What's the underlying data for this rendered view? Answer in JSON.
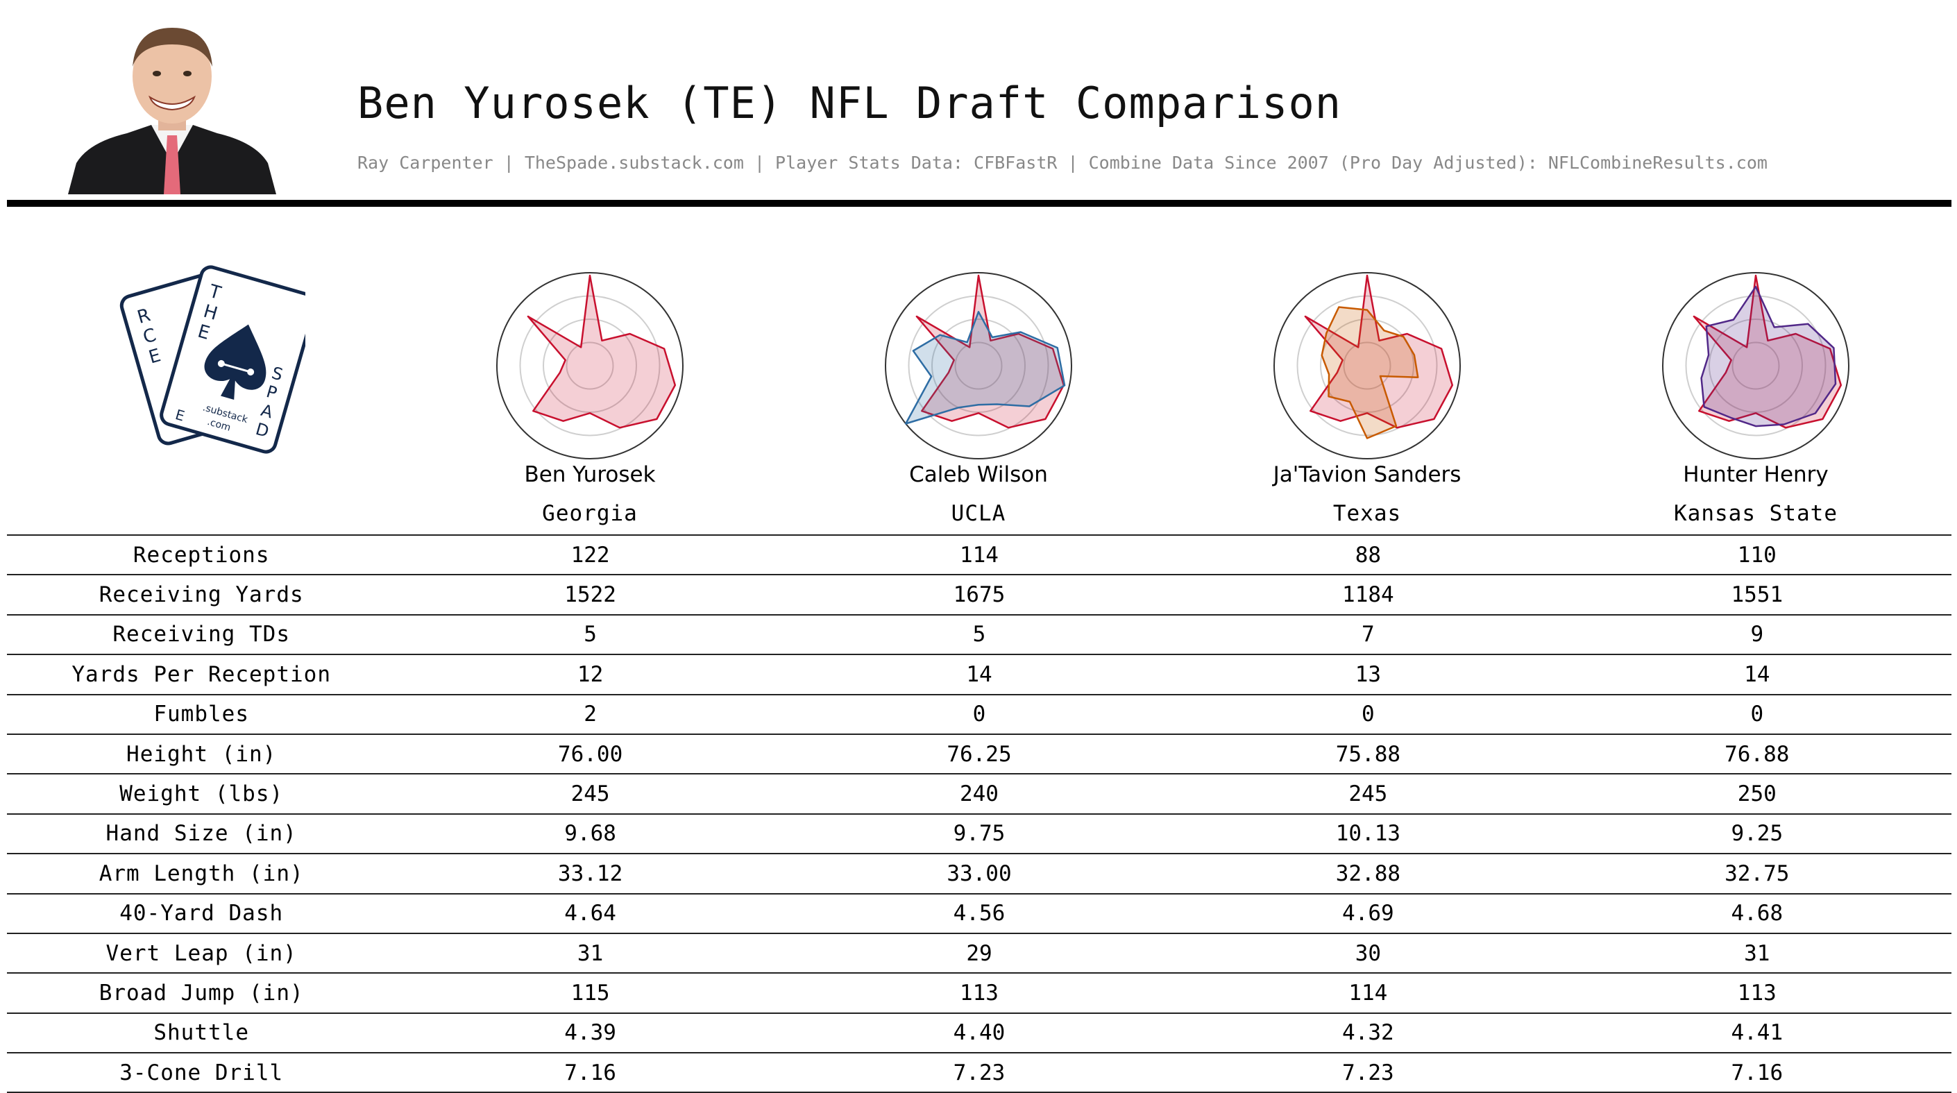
{
  "header": {
    "title": "Ben Yurosek (TE) NFL Draft Comparison",
    "subtitle": "Ray Carpenter | TheSpade.substack.com | Player Stats Data: CFBFastR | Combine Data Since 2007 (Pro Day Adjusted): NFLCombineResults.com"
  },
  "logo": {
    "back_card_letters": [
      "R",
      "C",
      "E"
    ],
    "front_card_letters": [
      "T",
      "H",
      "E",
      "S",
      "P",
      "A",
      "D",
      "E"
    ],
    "small_text": ".substack",
    "small_text2": ".com"
  },
  "colors": {
    "base": "#c8102e",
    "caleb": "#2e6da4",
    "jatavion": "#c85a00",
    "hunter": "#512888"
  },
  "players": [
    {
      "name": "Ben Yurosek",
      "school": "Georgia"
    },
    {
      "name": "Caleb Wilson",
      "school": "UCLA"
    },
    {
      "name": "Ja'Tavion Sanders",
      "school": "Texas"
    },
    {
      "name": "Hunter Henry",
      "school": "Kansas State"
    }
  ],
  "chart_data": {
    "type": "radar",
    "axes": [
      "Receptions",
      "Receiving Yards",
      "Receiving TDs",
      "Yards Per Reception",
      "Fumbles",
      "Height (in)",
      "Weight (lbs)",
      "Hand Size (in)",
      "Arm Length (in)",
      "40-Yard Dash",
      "Vert Leap (in)",
      "Broad Jump (in)",
      "Shuttle",
      "3-Cone Drill"
    ],
    "range": [
      0,
      1
    ],
    "base_series": {
      "name": "Ben Yurosek",
      "values": [
        0.97,
        0.3,
        0.55,
        0.82,
        0.94,
        0.92,
        0.74,
        0.51,
        0.66,
        0.78,
        0.33,
        0.27,
        0.85,
        0.22
      ]
    },
    "comparisons": [
      {
        "name": "Caleb Wilson",
        "values": [
          0.58,
          0.34,
          0.58,
          0.87,
          0.95,
          0.7,
          0.46,
          0.42,
          0.5,
          1.0,
          0.52,
          0.72,
          0.53,
          0.28
        ]
      },
      {
        "name": "Ja'Tavion Sanders",
        "values": [
          0.6,
          0.42,
          0.5,
          0.52,
          0.56,
          0.18,
          0.72,
          0.78,
          0.43,
          0.53,
          0.42,
          0.5,
          0.56,
          0.7
        ]
      },
      {
        "name": "Hunter Henry",
        "values": [
          0.85,
          0.46,
          0.72,
          0.86,
          0.88,
          0.82,
          0.7,
          0.65,
          0.62,
          0.71,
          0.6,
          0.52,
          0.68,
          0.55
        ]
      }
    ]
  },
  "table": {
    "rows": [
      {
        "label": "Receptions",
        "values": [
          "122",
          "114",
          "88",
          "110"
        ]
      },
      {
        "label": "Receiving Yards",
        "values": [
          "1522",
          "1675",
          "1184",
          "1551"
        ]
      },
      {
        "label": "Receiving TDs",
        "values": [
          "5",
          "5",
          "7",
          "9"
        ]
      },
      {
        "label": "Yards Per Reception",
        "values": [
          "12",
          "14",
          "13",
          "14"
        ]
      },
      {
        "label": "Fumbles",
        "values": [
          "2",
          "0",
          "0",
          "0"
        ]
      },
      {
        "label": "Height (in)",
        "values": [
          "76.00",
          "76.25",
          "75.88",
          "76.88"
        ]
      },
      {
        "label": "Weight (lbs)",
        "values": [
          "245",
          "240",
          "245",
          "250"
        ]
      },
      {
        "label": "Hand Size (in)",
        "values": [
          "9.68",
          "9.75",
          "10.13",
          "9.25"
        ]
      },
      {
        "label": "Arm Length (in)",
        "values": [
          "33.12",
          "33.00",
          "32.88",
          "32.75"
        ]
      },
      {
        "label": "40-Yard Dash",
        "values": [
          "4.64",
          "4.56",
          "4.69",
          "4.68"
        ]
      },
      {
        "label": "Vert Leap (in)",
        "values": [
          "31",
          "29",
          "30",
          "31"
        ]
      },
      {
        "label": "Broad Jump (in)",
        "values": [
          "115",
          "113",
          "114",
          "113"
        ]
      },
      {
        "label": "Shuttle",
        "values": [
          "4.39",
          "4.40",
          "4.32",
          "4.41"
        ]
      },
      {
        "label": "3-Cone Drill",
        "values": [
          "7.16",
          "7.23",
          "7.23",
          "7.16"
        ]
      }
    ]
  }
}
